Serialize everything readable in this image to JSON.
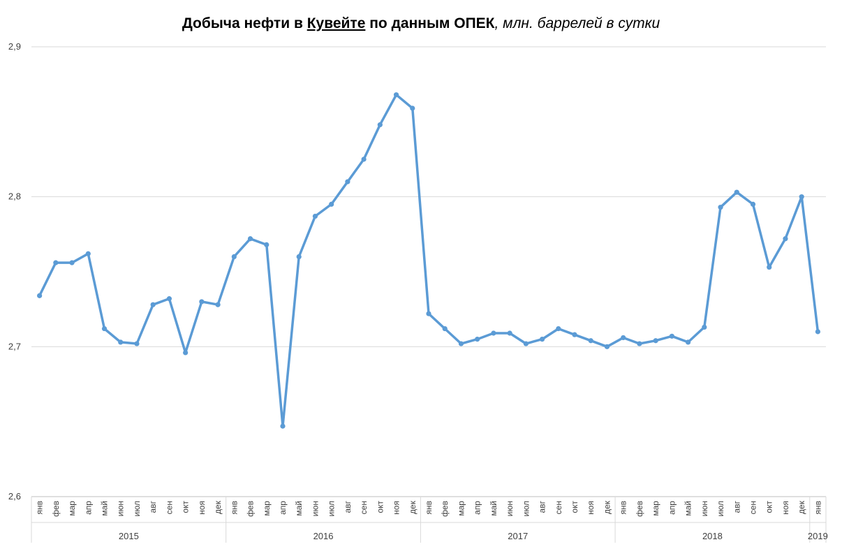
{
  "chart_data": {
    "type": "line",
    "title": {
      "prefix": "Добыча нефти в ",
      "country": "Кувейте",
      "middle": " по данным ОПЕК",
      "unit": ", млн. баррелей в сутки"
    },
    "ylim": [
      2.6,
      2.9
    ],
    "yticks": [
      "2,6",
      "2,7",
      "2,8",
      "2,9"
    ],
    "grid": true,
    "line_color": "#5B9BD5",
    "x": [
      "янв",
      "фев",
      "мар",
      "апр",
      "май",
      "июн",
      "июл",
      "авг",
      "сен",
      "окт",
      "ноя",
      "дек",
      "янв",
      "фев",
      "мар",
      "апр",
      "май",
      "июн",
      "июл",
      "авг",
      "сен",
      "окт",
      "ноя",
      "дек",
      "янв",
      "фев",
      "мар",
      "апр",
      "май",
      "июн",
      "июл",
      "авг",
      "сен",
      "окт",
      "ноя",
      "дек",
      "янв",
      "фев",
      "мар",
      "апр",
      "май",
      "июн",
      "июл",
      "авг",
      "сен",
      "окт",
      "ноя",
      "дек",
      "янв"
    ],
    "year_groups": [
      {
        "label": "2015",
        "count": 12
      },
      {
        "label": "2016",
        "count": 12
      },
      {
        "label": "2017",
        "count": 12
      },
      {
        "label": "2018",
        "count": 12
      },
      {
        "label": "2019",
        "count": 1
      }
    ],
    "series": [
      {
        "values": [
          2.734,
          2.756,
          2.756,
          2.762,
          2.712,
          2.703,
          2.702,
          2.728,
          2.732,
          2.696,
          2.73,
          2.728,
          2.76,
          2.772,
          2.768,
          2.647,
          2.76,
          2.787,
          2.795,
          2.81,
          2.825,
          2.848,
          2.868,
          2.859,
          2.722,
          2.712,
          2.702,
          2.705,
          2.709,
          2.709,
          2.702,
          2.705,
          2.712,
          2.708,
          2.704,
          2.7,
          2.706,
          2.702,
          2.704,
          2.707,
          2.703,
          2.713,
          2.793,
          2.803,
          2.795,
          2.753,
          2.772,
          2.8,
          2.71
        ]
      }
    ]
  }
}
